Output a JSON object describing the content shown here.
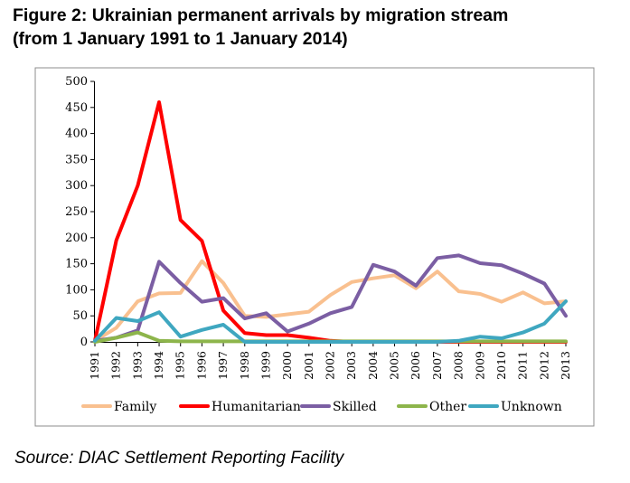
{
  "figure": {
    "title_line1": "Figure 2: Ukrainian permanent arrivals by migration stream",
    "title_line2": "(from 1 January 1991 to 1 January 2014)",
    "source": "Source: DIAC Settlement Reporting Facility"
  },
  "chart_data": {
    "type": "line",
    "title": "Figure 2: Ukrainian permanent arrivals by migration stream (from 1 January 1991 to 1 January 2014)",
    "xlabel": "",
    "ylabel": "",
    "ylim": [
      0,
      500
    ],
    "yticks": [
      0,
      50,
      100,
      150,
      200,
      250,
      300,
      350,
      400,
      450,
      500
    ],
    "grid": false,
    "legend_position": "bottom",
    "categories": [
      "1991",
      "1992",
      "1993",
      "1994",
      "1995",
      "1996",
      "1997",
      "1998",
      "1999",
      "2000",
      "2001",
      "2002",
      "2003",
      "2004",
      "2005",
      "2006",
      "2007",
      "2008",
      "2009",
      "2010",
      "2011",
      "2012",
      "2013"
    ],
    "series": [
      {
        "name": "Family",
        "color": "#f9c08f",
        "values": [
          2,
          27,
          78,
          93,
          94,
          155,
          113,
          50,
          48,
          53,
          58,
          90,
          115,
          122,
          128,
          103,
          135,
          97,
          92,
          77,
          95,
          74,
          78
        ]
      },
      {
        "name": "Humanitarian",
        "color": "#ff0000",
        "values": [
          2,
          195,
          300,
          460,
          234,
          194,
          60,
          17,
          13,
          13,
          8,
          2,
          0,
          0,
          0,
          0,
          0,
          0,
          0,
          0,
          0,
          0,
          0
        ]
      },
      {
        "name": "Skilled",
        "color": "#7b5ea3",
        "values": [
          2,
          8,
          22,
          154,
          113,
          77,
          84,
          45,
          55,
          20,
          35,
          55,
          67,
          148,
          135,
          108,
          161,
          166,
          151,
          147,
          131,
          112,
          50
        ]
      },
      {
        "name": "Other",
        "color": "#8db54b",
        "values": [
          0,
          8,
          18,
          2,
          1,
          1,
          1,
          1,
          1,
          1,
          1,
          1,
          1,
          1,
          1,
          1,
          1,
          1,
          1,
          1,
          1,
          1,
          1
        ]
      },
      {
        "name": "Unknown",
        "color": "#3fa7c0",
        "values": [
          2,
          46,
          40,
          57,
          10,
          23,
          33,
          0,
          0,
          0,
          0,
          0,
          0,
          0,
          0,
          0,
          0,
          2,
          10,
          7,
          18,
          35,
          78
        ]
      }
    ]
  }
}
